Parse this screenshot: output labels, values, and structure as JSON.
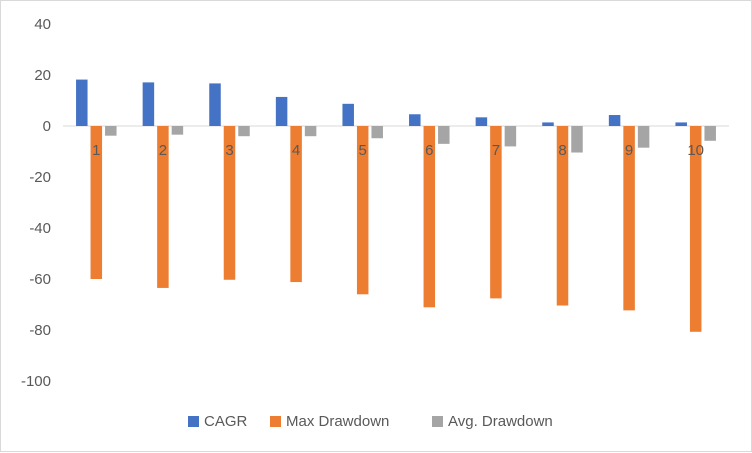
{
  "chart_data": {
    "type": "bar",
    "title": "",
    "xlabel": "",
    "ylabel": "",
    "categories": [
      "1",
      "2",
      "3",
      "4",
      "5",
      "6",
      "7",
      "8",
      "9",
      "10"
    ],
    "series": [
      {
        "name": "CAGR",
        "color": "#4472c4",
        "values": [
          18.2,
          17.1,
          16.7,
          11.4,
          8.7,
          4.6,
          3.4,
          1.4,
          4.3,
          1.4
        ]
      },
      {
        "name": "Max Drawdown",
        "color": "#ed7d31",
        "values": [
          -60.0,
          -63.5,
          -60.3,
          -61.2,
          -66.0,
          -71.1,
          -67.6,
          -70.4,
          -72.3,
          -80.7
        ]
      },
      {
        "name": "Avg. Drawdown",
        "color": "#a5a5a5",
        "values": [
          -3.8,
          -3.4,
          -4.0,
          -4.0,
          -4.8,
          -7.0,
          -8.0,
          -10.4,
          -8.5,
          -5.8
        ]
      }
    ],
    "ylim": [
      -100,
      40
    ],
    "yticks": [
      40,
      20,
      0,
      -20,
      -40,
      -60,
      -80,
      -100
    ],
    "grid": false,
    "legend_position": "bottom"
  }
}
